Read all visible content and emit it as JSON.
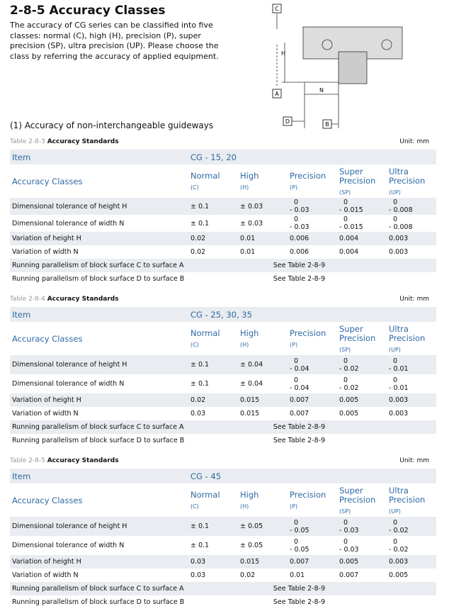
{
  "header": {
    "title": "2-8-5 Accuracy Classes",
    "intro": [
      "The accuracy of CG series can be classified into five",
      "classes: normal (C), high (H), precision (P), super",
      "precision (SP), ultra precision (UP). Please choose the",
      "class by referring the accuracy of applied equipment."
    ],
    "subtitle": "(1) Accuracy of non-interchangeable guideways"
  },
  "diagram": {
    "labels": [
      "C",
      "H",
      "A",
      "N",
      "D",
      "B"
    ]
  },
  "tables": [
    {
      "number": "Table 2-8-3",
      "caption": "Accuracy Standards",
      "unit": "Unit: mm",
      "item": "Item",
      "model": "CG - 15, 20",
      "classes_label": "Accuracy Classes",
      "classes": [
        [
          "Normal",
          "(C)"
        ],
        [
          "High",
          "(H)"
        ],
        [
          "Precision",
          "(P)"
        ],
        [
          "Super Precision",
          "(SP)"
        ],
        [
          "Ultra Precision",
          "(UP)"
        ]
      ],
      "rows": [
        [
          "Dimensional tolerance of height H",
          "± 0.1",
          "± 0.03",
          [
            "0",
            "- 0.03"
          ],
          [
            "0",
            "- 0.015"
          ],
          [
            "0",
            "- 0.008"
          ]
        ],
        [
          "Dimensional tolerance of width N",
          "± 0.1",
          "± 0.03",
          [
            "0",
            "- 0.03"
          ],
          [
            "0",
            "- 0.015"
          ],
          [
            "0",
            "- 0.008"
          ]
        ],
        [
          "Variation of height H",
          "0.02",
          "0.01",
          "0.006",
          "0.004",
          "0.003"
        ],
        [
          "Variation of width N",
          "0.02",
          "0.01",
          "0.006",
          "0.004",
          "0.003"
        ],
        [
          "Running parallelism of block surface C to surface A",
          "See Table 2-8-9"
        ],
        [
          "Running parallelism of block surface D to surface B",
          "See Table 2-8-9"
        ]
      ]
    },
    {
      "number": "Table 2-8-4",
      "caption": "Accuracy Standards",
      "unit": "Unit: mm",
      "item": "Item",
      "model": "CG - 25, 30, 35",
      "classes_label": "Accuracy Classes",
      "classes": [
        [
          "Normal",
          "(C)"
        ],
        [
          "High",
          "(H)"
        ],
        [
          "Precision",
          "(P)"
        ],
        [
          "Super Precision",
          "(SP)"
        ],
        [
          "Ultra Precision",
          "(UP)"
        ]
      ],
      "rows": [
        [
          "Dimensional tolerance of height H",
          "± 0.1",
          "± 0.04",
          [
            "0",
            "- 0.04"
          ],
          [
            "0",
            "- 0.02"
          ],
          [
            "0",
            "- 0.01"
          ]
        ],
        [
          "Dimensional tolerance of width N",
          "± 0.1",
          "± 0.04",
          [
            "0",
            "- 0.04"
          ],
          [
            "0",
            "- 0.02"
          ],
          [
            "0",
            "- 0.01"
          ]
        ],
        [
          "Variation of height H",
          "0.02",
          "0.015",
          "0.007",
          "0.005",
          "0.003"
        ],
        [
          "Variation of width N",
          "0.03",
          "0.015",
          "0.007",
          "0.005",
          "0.003"
        ],
        [
          "Running parallelism of block surface C to surface A",
          "See Table 2-8-9"
        ],
        [
          "Running parallelism of block surface D to surface B",
          "See Table 2-8-9"
        ]
      ]
    },
    {
      "number": "Table 2-8-5",
      "caption": "Accuracy Standards",
      "unit": "Unit: mm",
      "item": "Item",
      "model": "CG - 45",
      "classes_label": "Accuracy Classes",
      "classes": [
        [
          "Normal",
          "(C)"
        ],
        [
          "High",
          "(H)"
        ],
        [
          "Precision",
          "(P)"
        ],
        [
          "Super Precision",
          "(SP)"
        ],
        [
          "Ultra Precision",
          "(UP)"
        ]
      ],
      "rows": [
        [
          "Dimensional tolerance of height H",
          "± 0.1",
          "± 0.05",
          [
            "0",
            "- 0.05"
          ],
          [
            "0",
            "- 0.03"
          ],
          [
            "0",
            "- 0.02"
          ]
        ],
        [
          "Dimensional tolerance of width N",
          "± 0.1",
          "± 0.05",
          [
            "0",
            "- 0.05"
          ],
          [
            "0",
            "- 0.03"
          ],
          [
            "0",
            "- 0.02"
          ]
        ],
        [
          "Variation of height H",
          "0.03",
          "0.015",
          "0.007",
          "0.005",
          "0.003"
        ],
        [
          "Variation of width N",
          "0.03",
          "0.02",
          "0.01",
          "0.007",
          "0.005"
        ],
        [
          "Running parallelism of block surface C to surface A",
          "See Table 2-8-9"
        ],
        [
          "Running parallelism of block surface D to surface B",
          "See Table 2-8-9"
        ]
      ]
    }
  ]
}
